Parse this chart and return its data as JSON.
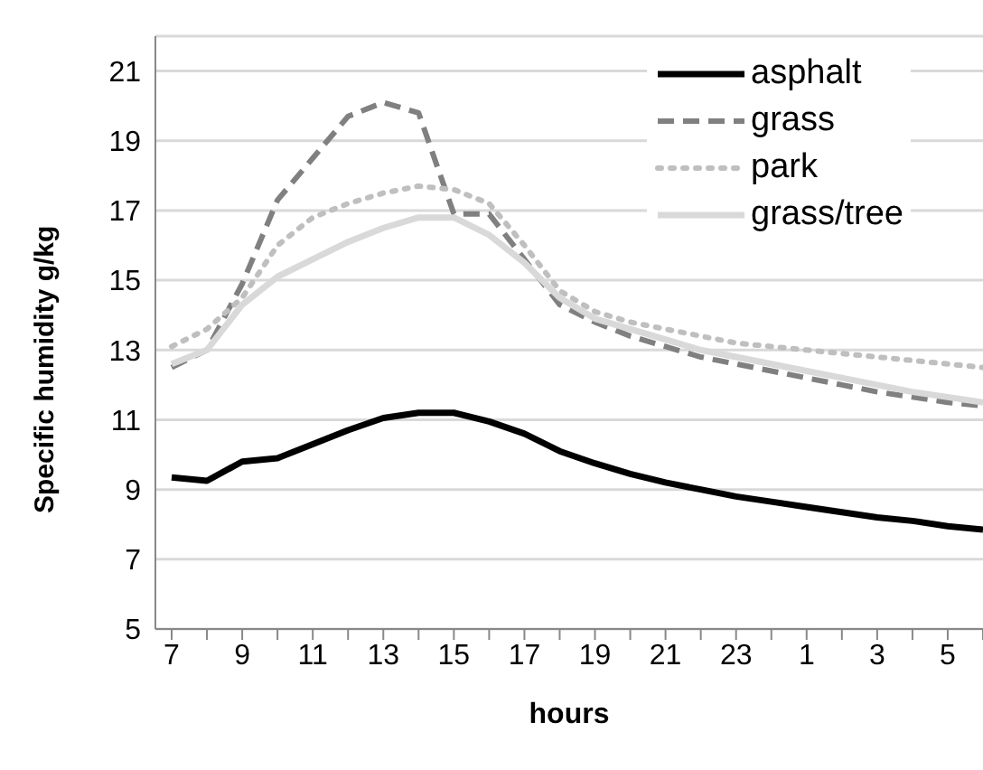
{
  "chart_data": {
    "type": "line",
    "xlabel": "hours",
    "ylabel": "Specific humidity g/kg",
    "categories": [
      "7",
      null,
      "9",
      null,
      "11",
      null,
      "13",
      null,
      "15",
      null,
      "17",
      null,
      "19",
      null,
      "21",
      null,
      "23",
      null,
      "1",
      null,
      "3",
      null,
      "5",
      null
    ],
    "series": [
      {
        "name": "asphalt",
        "color": "#000000",
        "line_style": "solid",
        "values": [
          9.35,
          9.25,
          9.8,
          9.9,
          10.3,
          10.7,
          11.05,
          11.2,
          11.2,
          10.95,
          10.6,
          10.1,
          9.75,
          9.45,
          9.2,
          9.0,
          8.8,
          8.65,
          8.5,
          8.35,
          8.2,
          8.1,
          7.95,
          7.85
        ]
      },
      {
        "name": "grass",
        "color": "#808080",
        "line_style": "dashed",
        "values": [
          12.5,
          13.0,
          14.9,
          17.3,
          18.5,
          19.7,
          20.1,
          19.8,
          16.9,
          16.9,
          15.6,
          14.3,
          13.8,
          13.4,
          13.1,
          12.8,
          12.6,
          12.4,
          12.2,
          12.0,
          11.8,
          11.65,
          11.5,
          11.4
        ]
      },
      {
        "name": "park",
        "color": "#bfbfbf",
        "line_style": "dotted",
        "values": [
          13.1,
          13.6,
          14.5,
          16.0,
          16.8,
          17.2,
          17.5,
          17.7,
          17.6,
          17.2,
          16.0,
          14.7,
          14.1,
          13.8,
          13.6,
          13.4,
          13.2,
          13.1,
          13.0,
          12.9,
          12.8,
          12.7,
          12.6,
          12.5
        ]
      },
      {
        "name": "grass/tree",
        "color": "#d9d9d9",
        "line_style": "solid",
        "values": [
          12.6,
          13.0,
          14.3,
          15.1,
          15.6,
          16.1,
          16.5,
          16.8,
          16.8,
          16.3,
          15.5,
          14.5,
          13.9,
          13.6,
          13.3,
          13.0,
          12.8,
          12.6,
          12.4,
          12.2,
          12.0,
          11.8,
          11.65,
          11.5
        ]
      }
    ],
    "ylim": [
      5,
      22
    ],
    "yticks": [
      5,
      7,
      9,
      11,
      13,
      15,
      17,
      19,
      21
    ],
    "grid": "y",
    "legend": "top right",
    "marker": "none"
  }
}
